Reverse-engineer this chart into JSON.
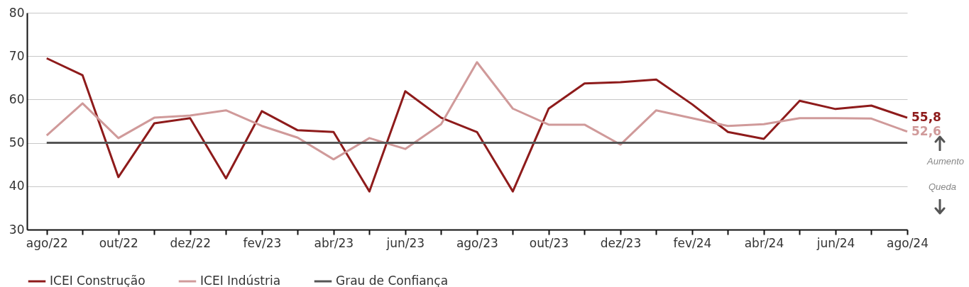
{
  "chart_data": {
    "type": "line",
    "categories": [
      "ago/22",
      null,
      "out/22",
      null,
      "dez/22",
      null,
      "fev/23",
      null,
      "abr/23",
      null,
      "jun/23",
      null,
      "ago/23",
      null,
      "out/23",
      null,
      "dez/23",
      null,
      "fev/24",
      null,
      "abr/24",
      null,
      "jun/24",
      null,
      "ago/24"
    ],
    "series": [
      {
        "name": "ICEI Construção",
        "color": "#8e1b1b",
        "values": [
          69.5,
          65.6,
          42.1,
          54.5,
          55.7,
          41.8,
          57.3,
          52.9,
          52.5,
          38.8,
          61.9,
          55.8,
          52.5,
          38.8,
          57.9,
          63.7,
          64.0,
          64.6,
          58.9,
          52.5,
          50.9,
          59.7,
          57.8,
          58.6,
          55.8
        ],
        "value_labels": [
          null,
          null,
          null,
          null,
          null,
          null,
          null,
          null,
          null,
          null,
          null,
          null,
          null,
          null,
          null,
          null,
          null,
          null,
          null,
          null,
          null,
          null,
          null,
          null,
          "55,8"
        ]
      },
      {
        "name": "ICEI Indústria",
        "color": "#d09a9a",
        "values": [
          51.7,
          59.1,
          51.1,
          55.8,
          56.3,
          57.5,
          53.9,
          51.2,
          46.2,
          51.1,
          48.6,
          54.3,
          68.6,
          57.9,
          54.2,
          54.2,
          49.6,
          57.5,
          55.7,
          53.9,
          54.3,
          55.7,
          55.7,
          55.6,
          52.6
        ],
        "value_labels": [
          null,
          null,
          null,
          null,
          null,
          null,
          null,
          null,
          null,
          null,
          null,
          null,
          null,
          null,
          null,
          null,
          null,
          null,
          null,
          null,
          null,
          null,
          null,
          null,
          "52,6"
        ]
      },
      {
        "name": "Grau de Confiança",
        "color": "#555555",
        "values": [
          50,
          50,
          50,
          50,
          50,
          50,
          50,
          50,
          50,
          50,
          50,
          50,
          50,
          50,
          50,
          50,
          50,
          50,
          50,
          50,
          50,
          50,
          50,
          50,
          50
        ]
      }
    ],
    "ylim": [
      30,
      80
    ],
    "yticks": [
      30,
      40,
      50,
      60,
      70,
      80
    ],
    "grid": "y",
    "legend": "bottom",
    "annotations": [
      "Aumento",
      "Queda"
    ]
  }
}
